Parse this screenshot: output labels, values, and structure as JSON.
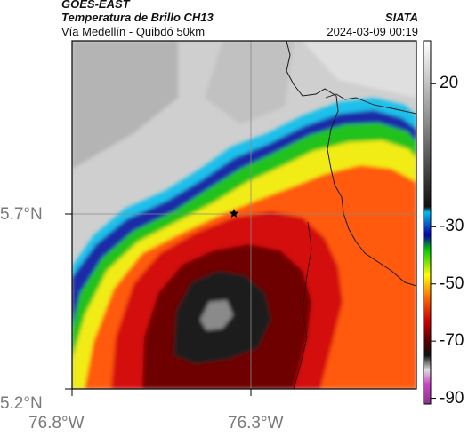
{
  "header": {
    "satellite": "GOES-EAST",
    "product": "Temperatura de Brillo CH13",
    "region": "Vía Medellín - Quibdó 50km",
    "org": "SIATA",
    "datetime": "2024-03-09 00:19"
  },
  "map": {
    "latitude_labels": [
      "5.7°N",
      "5.2°N"
    ],
    "longitude_labels": [
      "76.8°W",
      "76.3°W"
    ],
    "marker": "star",
    "palette": {
      "frame": "#000000",
      "grid": "#8a8a8a",
      "warm_cloudfree": "#d2d2d2",
      "cold_cloud_core": "#1a1a1a"
    }
  },
  "colorbar": {
    "tick_labels": [
      "20",
      "-30",
      "-50",
      "-70",
      "-90"
    ],
    "stops": [
      {
        "value": 35,
        "color": "#ffffff"
      },
      {
        "value": -23,
        "color": "#111111"
      },
      {
        "value": -25,
        "color": "#00bbee"
      },
      {
        "value": -33,
        "color": "#0000aa"
      },
      {
        "value": -38,
        "color": "#00cc00"
      },
      {
        "value": -47,
        "color": "#ffff00"
      },
      {
        "value": -55,
        "color": "#ff6600"
      },
      {
        "value": -63,
        "color": "#cc0000"
      },
      {
        "value": -70,
        "color": "#550000"
      },
      {
        "value": -75,
        "color": "#111111"
      },
      {
        "value": -80,
        "color": "#dddddd"
      },
      {
        "value": -85,
        "color": "#cc44cc"
      },
      {
        "value": -92,
        "color": "#883388"
      }
    ]
  }
}
